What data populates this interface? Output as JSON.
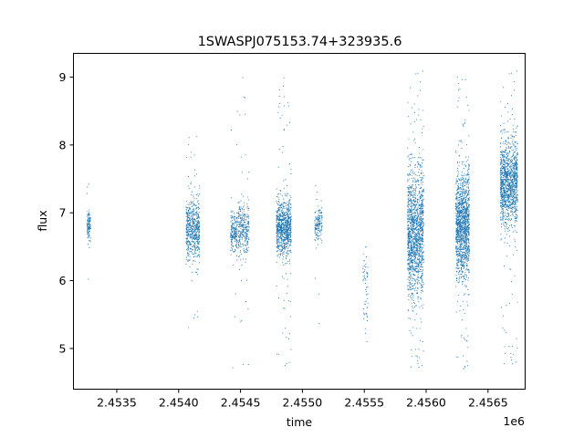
{
  "chart_data": {
    "type": "scatter",
    "title": "1SWASPJ075153.74+323935.6",
    "xlabel": "time",
    "ylabel": "flux",
    "x_offset_label": "1e6",
    "xlim": [
      2453150,
      2456800
    ],
    "ylim": [
      4.4,
      9.35
    ],
    "xticks": [
      2453500,
      2454000,
      2454500,
      2455000,
      2455500,
      2456000,
      2456500
    ],
    "xtick_labels": [
      "2.4535",
      "2.4540",
      "2.4545",
      "2.4550",
      "2.4555",
      "2.4560",
      "2.4565"
    ],
    "yticks": [
      5,
      6,
      7,
      8,
      9
    ],
    "ytick_labels": [
      "5",
      "6",
      "7",
      "8",
      "9"
    ],
    "grid": false,
    "marker_color": "#1f77b4",
    "series": [
      {
        "values_description_free": true,
        "observing_seasons": [
          {
            "t_start": 2453260,
            "t_end": 2453290,
            "flux_center": 6.8,
            "flux_spread": 0.12,
            "flux_min": 5.85,
            "flux_max": 7.55,
            "n": 120
          },
          {
            "t_start": 2454060,
            "t_end": 2454170,
            "flux_center": 6.75,
            "flux_spread": 0.22,
            "flux_min": 5.2,
            "flux_max": 8.2,
            "n": 600
          },
          {
            "t_start": 2454420,
            "t_end": 2454475,
            "flux_center": 6.7,
            "flux_spread": 0.14,
            "flux_min": 4.65,
            "flux_max": 8.55,
            "n": 200
          },
          {
            "t_start": 2454480,
            "t_end": 2454570,
            "flux_center": 6.75,
            "flux_spread": 0.2,
            "flux_min": 4.75,
            "flux_max": 9.1,
            "n": 300
          },
          {
            "t_start": 2454790,
            "t_end": 2454910,
            "flux_center": 6.78,
            "flux_spread": 0.2,
            "flux_min": 4.7,
            "flux_max": 9.0,
            "n": 900
          },
          {
            "t_start": 2455100,
            "t_end": 2455160,
            "flux_center": 6.8,
            "flux_spread": 0.12,
            "flux_min": 5.1,
            "flux_max": 7.45,
            "n": 150
          },
          {
            "t_start": 2455490,
            "t_end": 2455530,
            "flux_center": 5.9,
            "flux_spread": 0.35,
            "flux_min": 5.1,
            "flux_max": 6.5,
            "n": 60
          },
          {
            "t_start": 2455850,
            "t_end": 2455980,
            "flux_center": 6.7,
            "flux_spread": 0.45,
            "flux_min": 4.65,
            "flux_max": 9.1,
            "n": 1500
          },
          {
            "t_start": 2456240,
            "t_end": 2456350,
            "flux_center": 6.8,
            "flux_spread": 0.38,
            "flux_min": 4.65,
            "flux_max": 9.1,
            "n": 1400
          },
          {
            "t_start": 2456600,
            "t_end": 2456740,
            "flux_center": 7.45,
            "flux_spread": 0.3,
            "flux_min": 4.7,
            "flux_max": 9.1,
            "n": 1300
          }
        ]
      }
    ]
  }
}
